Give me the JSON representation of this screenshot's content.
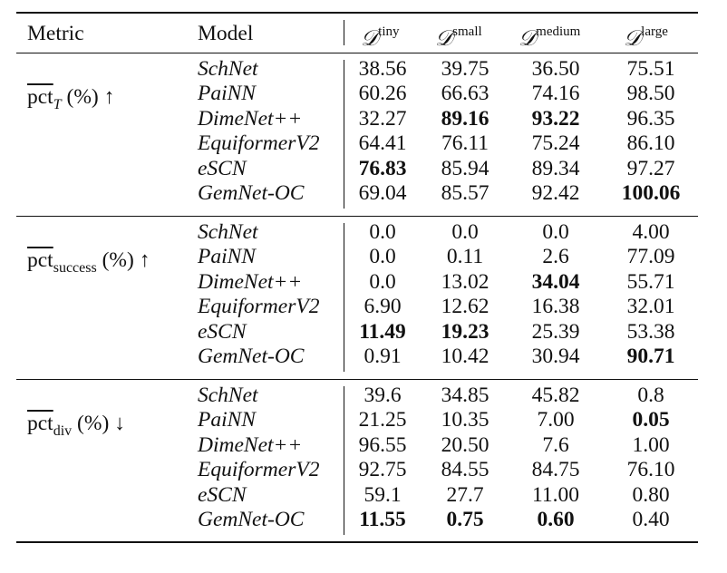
{
  "header": {
    "metric": "Metric",
    "model": "Model",
    "dataset_symbol": "𝒟",
    "datasets": [
      "tiny",
      "small",
      "medium",
      "large"
    ]
  },
  "groups": [
    {
      "metric": {
        "base": "pct",
        "sub": "T",
        "unit": "(%)",
        "arrow": "↑"
      },
      "rows": [
        {
          "model": "SchNet",
          "values": [
            "38.56",
            "39.75",
            "36.50",
            "75.51"
          ],
          "bold": [
            false,
            false,
            false,
            false
          ]
        },
        {
          "model": "PaiNN",
          "values": [
            "60.26",
            "66.63",
            "74.16",
            "98.50"
          ],
          "bold": [
            false,
            false,
            false,
            false
          ]
        },
        {
          "model": "DimeNet++",
          "values": [
            "32.27",
            "89.16",
            "93.22",
            "96.35"
          ],
          "bold": [
            false,
            true,
            true,
            false
          ]
        },
        {
          "model": "EquiformerV2",
          "values": [
            "64.41",
            "76.11",
            "75.24",
            "86.10"
          ],
          "bold": [
            false,
            false,
            false,
            false
          ]
        },
        {
          "model": "eSCN",
          "values": [
            "76.83",
            "85.94",
            "89.34",
            "97.27"
          ],
          "bold": [
            true,
            false,
            false,
            false
          ]
        },
        {
          "model": "GemNet-OC",
          "values": [
            "69.04",
            "85.57",
            "92.42",
            "100.06"
          ],
          "bold": [
            false,
            false,
            false,
            true
          ]
        }
      ]
    },
    {
      "metric": {
        "base": "pct",
        "sub": "success",
        "unit": "(%)",
        "arrow": "↑"
      },
      "rows": [
        {
          "model": "SchNet",
          "values": [
            "0.0",
            "0.0",
            "0.0",
            "4.00"
          ],
          "bold": [
            false,
            false,
            false,
            false
          ]
        },
        {
          "model": "PaiNN",
          "values": [
            "0.0",
            "0.11",
            "2.6",
            "77.09"
          ],
          "bold": [
            false,
            false,
            false,
            false
          ]
        },
        {
          "model": "DimeNet++",
          "values": [
            "0.0",
            "13.02",
            "34.04",
            "55.71"
          ],
          "bold": [
            false,
            false,
            true,
            false
          ]
        },
        {
          "model": "EquiformerV2",
          "values": [
            "6.90",
            "12.62",
            "16.38",
            "32.01"
          ],
          "bold": [
            false,
            false,
            false,
            false
          ]
        },
        {
          "model": "eSCN",
          "values": [
            "11.49",
            "19.23",
            "25.39",
            "53.38"
          ],
          "bold": [
            true,
            true,
            false,
            false
          ]
        },
        {
          "model": "GemNet-OC",
          "values": [
            "0.91",
            "10.42",
            "30.94",
            "90.71"
          ],
          "bold": [
            false,
            false,
            false,
            true
          ]
        }
      ]
    },
    {
      "metric": {
        "base": "pct",
        "sub": "div",
        "unit": "(%)",
        "arrow": "↓"
      },
      "rows": [
        {
          "model": "SchNet",
          "values": [
            "39.6",
            "34.85",
            "45.82",
            "0.8"
          ],
          "bold": [
            false,
            false,
            false,
            false
          ]
        },
        {
          "model": "PaiNN",
          "values": [
            "21.25",
            "10.35",
            "7.00",
            "0.05"
          ],
          "bold": [
            false,
            false,
            false,
            true
          ]
        },
        {
          "model": "DimeNet++",
          "values": [
            "96.55",
            "20.50",
            "7.6",
            "1.00"
          ],
          "bold": [
            false,
            false,
            false,
            false
          ]
        },
        {
          "model": "EquiformerV2",
          "values": [
            "92.75",
            "84.55",
            "84.75",
            "76.10"
          ],
          "bold": [
            false,
            false,
            false,
            false
          ]
        },
        {
          "model": "eSCN",
          "values": [
            "59.1",
            "27.7",
            "11.00",
            "0.80"
          ],
          "bold": [
            false,
            false,
            false,
            false
          ]
        },
        {
          "model": "GemNet-OC",
          "values": [
            "11.55",
            "0.75",
            "0.60",
            "0.40"
          ],
          "bold": [
            true,
            true,
            true,
            false
          ]
        }
      ]
    }
  ]
}
